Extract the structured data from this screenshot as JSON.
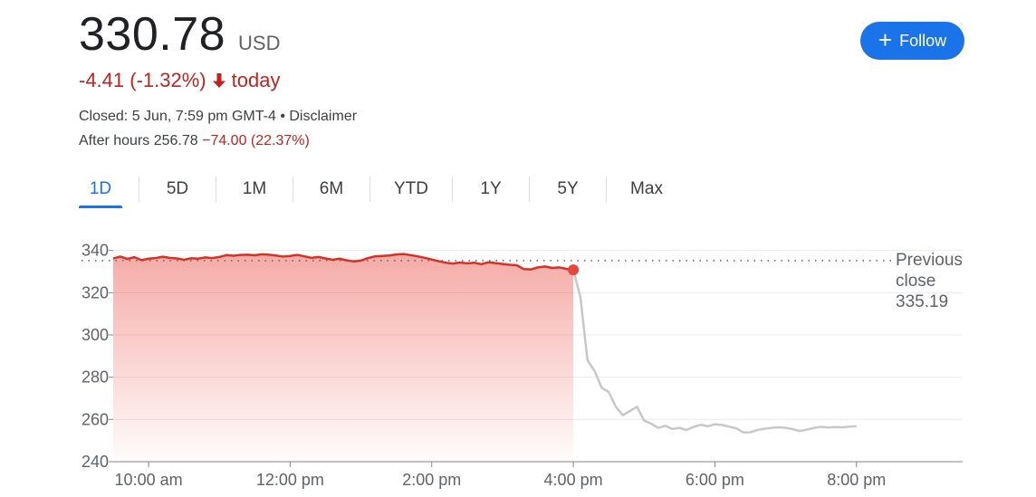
{
  "quote": {
    "price": "330.78",
    "currency": "USD",
    "change": "-4.41 (-1.32%)",
    "change_suffix": "today",
    "closed_text": "Closed: 5 Jun, 7:59 pm GMT-4 • Disclaimer",
    "after_hours_label": "After hours 256.78",
    "after_hours_change": "−74.00 (22.37%)"
  },
  "follow_button": {
    "label": "Follow",
    "icon": "plus-icon"
  },
  "tabs": [
    {
      "label": "1D",
      "active": true
    },
    {
      "label": "5D"
    },
    {
      "label": "1M"
    },
    {
      "label": "6M"
    },
    {
      "label": "YTD"
    },
    {
      "label": "1Y"
    },
    {
      "label": "5Y"
    },
    {
      "label": "Max"
    }
  ],
  "previous_close": {
    "label_line1": "Previous",
    "label_line2": "close",
    "value": "335.19"
  },
  "colors": {
    "negative": "#c5221f",
    "accent": "#1a73e8",
    "line_regular": "#d93025",
    "line_after_hours": "#c8c8c8"
  },
  "chart_data": {
    "type": "line",
    "ylim": [
      240,
      345
    ],
    "yticks": [
      240,
      260,
      280,
      300,
      320,
      340
    ],
    "xlim": [
      9.5,
      21.5
    ],
    "xticks": [
      10,
      12,
      14,
      16,
      18,
      20
    ],
    "xtick_labels": [
      "10:00 am",
      "12:00 pm",
      "2:00 pm",
      "4:00 pm",
      "6:00 pm",
      "8:00 pm"
    ],
    "previous_close": 335.19,
    "last_regular_point": {
      "x": 16.0,
      "y": 330.78
    },
    "series": [
      {
        "x": [
          9.5,
          9.6,
          9.7,
          9.8,
          9.9,
          10.0,
          10.1,
          10.2,
          10.3,
          10.4,
          10.5,
          10.6,
          10.7,
          10.8,
          10.9,
          11.0,
          11.1,
          11.2,
          11.3,
          11.4,
          11.5,
          11.6,
          11.7,
          11.8,
          11.9,
          12.0,
          12.1,
          12.2,
          12.3,
          12.4,
          12.5,
          12.6,
          12.7,
          12.8,
          12.9,
          13.0,
          13.1,
          13.2,
          13.3,
          13.4,
          13.5,
          13.6,
          13.7,
          13.8,
          13.9,
          14.0,
          14.1,
          14.2,
          14.3,
          14.4,
          14.5,
          14.6,
          14.7,
          14.8,
          14.9,
          15.0,
          15.1,
          15.2,
          15.3,
          15.4,
          15.5,
          15.6,
          15.7,
          15.8,
          15.9,
          16.0
        ],
        "y": [
          336.2,
          337.1,
          336.0,
          336.8,
          335.4,
          336.1,
          336.4,
          337.0,
          336.5,
          336.2,
          335.6,
          336.3,
          336.1,
          336.7,
          336.4,
          336.9,
          337.8,
          337.5,
          337.9,
          338.0,
          337.7,
          338.2,
          338.0,
          337.6,
          337.1,
          337.4,
          337.9,
          337.2,
          336.5,
          336.9,
          336.2,
          335.6,
          336.1,
          335.3,
          334.8,
          335.2,
          336.4,
          337.2,
          337.4,
          337.6,
          338.1,
          338.3,
          337.8,
          337.2,
          336.5,
          335.7,
          334.9,
          334.2,
          333.8,
          334.3,
          333.9,
          334.2,
          333.5,
          334.4,
          334.0,
          333.6,
          333.2,
          333.0,
          331.2,
          331.0,
          332.0,
          332.4,
          331.7,
          332.0,
          331.3,
          330.78
        ]
      },
      {
        "x": [
          16.0,
          16.1,
          16.2,
          16.3,
          16.4,
          16.5,
          16.6,
          16.7,
          16.8,
          16.9,
          17.0,
          17.1,
          17.2,
          17.3,
          17.4,
          17.5,
          17.6,
          17.7,
          17.8,
          17.9,
          18.0,
          18.1,
          18.2,
          18.3,
          18.4,
          18.5,
          18.6,
          18.7,
          18.8,
          18.9,
          19.0,
          19.1,
          19.2,
          19.3,
          19.4,
          19.5,
          19.6,
          19.7,
          19.8,
          19.9,
          20.0
        ],
        "y": [
          330.78,
          318.0,
          288.0,
          283.0,
          275.0,
          273.0,
          266.0,
          262.0,
          264.0,
          266.0,
          259.5,
          258.0,
          256.0,
          257.0,
          255.5,
          256.0,
          255.0,
          256.5,
          257.5,
          256.8,
          257.7,
          257.4,
          256.6,
          255.8,
          253.9,
          253.9,
          255.0,
          255.6,
          256.0,
          256.3,
          256.0,
          255.4,
          254.5,
          255.2,
          256.0,
          256.5,
          256.2,
          256.4,
          256.3,
          256.6,
          256.78
        ]
      }
    ]
  }
}
